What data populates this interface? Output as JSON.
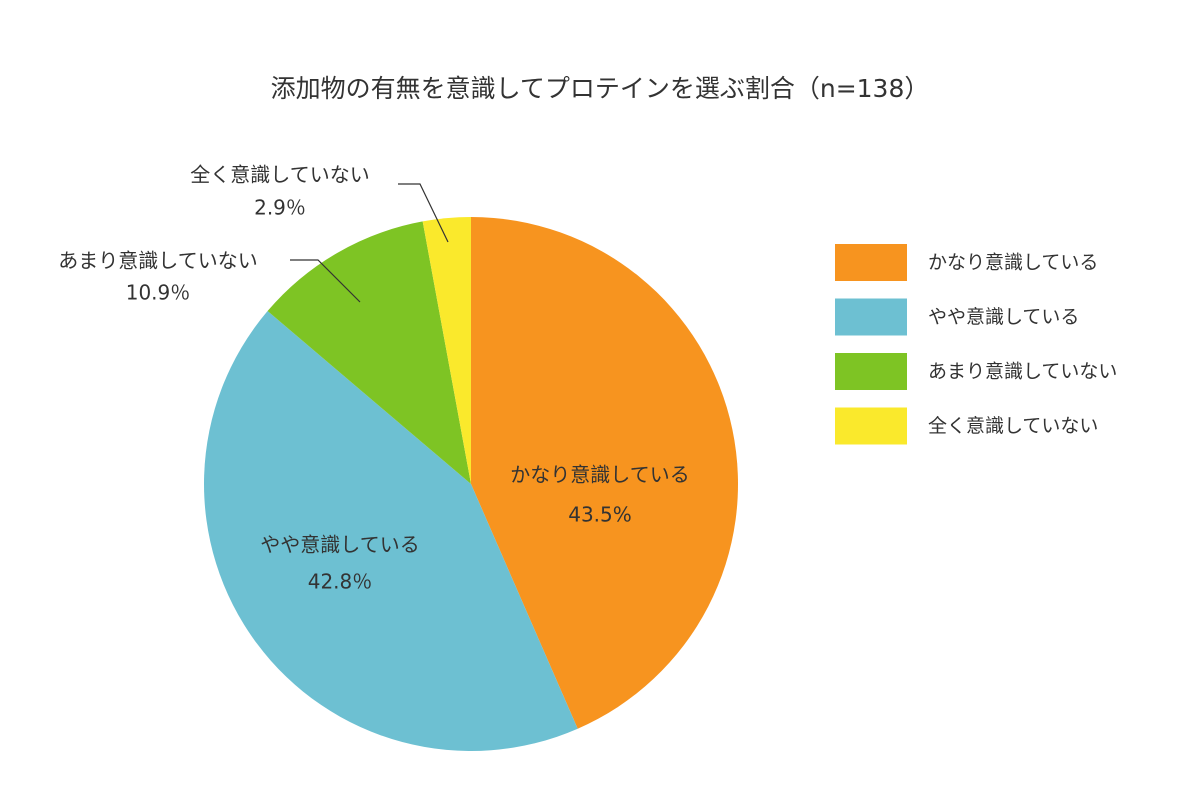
{
  "chart_data": {
    "type": "pie",
    "title": "添加物の有無を意識してプロテインを選ぶ割合（n=138）",
    "categories": [
      "かなり意識している",
      "やや意識している",
      "あまり意識していない",
      "全く意識していない"
    ],
    "values": [
      43.5,
      42.8,
      10.9,
      2.9
    ],
    "value_labels": [
      "43.5%",
      "42.8％",
      "10.9％",
      "2.9％"
    ],
    "colors": [
      "#f7941f",
      "#6dc0d2",
      "#7ec424",
      "#fae92c"
    ],
    "legend": "right"
  }
}
